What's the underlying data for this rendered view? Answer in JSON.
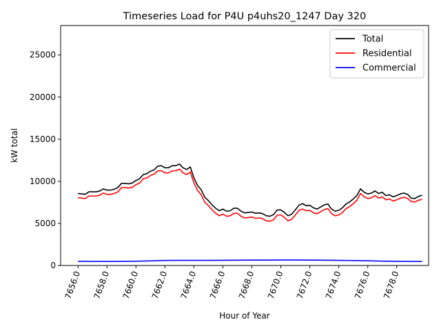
{
  "chart_data": {
    "type": "line",
    "title": "Timeseries Load for P4U p4uhs20_1247  Day 320",
    "xlabel": "Hour of Year",
    "ylabel": "kW total",
    "xlim": [
      7654.8,
      7680.2
    ],
    "ylim": [
      0,
      28500
    ],
    "x_ticks": [
      7656,
      7658,
      7660,
      7662,
      7664,
      7666,
      7668,
      7670,
      7672,
      7674,
      7676,
      7678
    ],
    "x_tick_labels": [
      "7656.0",
      "7658.0",
      "7660.0",
      "7662.0",
      "7664.0",
      "7666.0",
      "7668.0",
      "7670.0",
      "7672.0",
      "7674.0",
      "7676.0",
      "7678.0"
    ],
    "y_ticks": [
      0,
      5000,
      10000,
      15000,
      20000,
      25000
    ],
    "y_tick_labels": [
      "0",
      "5000",
      "10000",
      "15000",
      "20000",
      "25000"
    ],
    "grid": false,
    "legend_position": "top-right",
    "series": [
      {
        "name": "Total",
        "color": "#000000",
        "points": [
          [
            7656.0,
            8550
          ],
          [
            7656.25,
            8500
          ],
          [
            7656.5,
            8450
          ],
          [
            7656.75,
            8750
          ],
          [
            7657.0,
            8750
          ],
          [
            7657.25,
            8750
          ],
          [
            7657.5,
            8850
          ],
          [
            7657.75,
            9100
          ],
          [
            7658.0,
            8950
          ],
          [
            7658.25,
            8950
          ],
          [
            7658.5,
            9050
          ],
          [
            7658.75,
            9250
          ],
          [
            7659.0,
            9750
          ],
          [
            7659.25,
            9750
          ],
          [
            7659.5,
            9700
          ],
          [
            7659.75,
            9800
          ],
          [
            7660.0,
            10100
          ],
          [
            7660.25,
            10300
          ],
          [
            7660.5,
            10800
          ],
          [
            7660.75,
            10900
          ],
          [
            7661.0,
            11200
          ],
          [
            7661.25,
            11350
          ],
          [
            7661.5,
            11800
          ],
          [
            7661.75,
            11850
          ],
          [
            7662.0,
            11600
          ],
          [
            7662.25,
            11600
          ],
          [
            7662.5,
            11850
          ],
          [
            7662.75,
            11850
          ],
          [
            7663.0,
            12050
          ],
          [
            7663.25,
            11600
          ],
          [
            7663.5,
            11400
          ],
          [
            7663.75,
            11700
          ],
          [
            7664.0,
            10400
          ],
          [
            7664.25,
            9500
          ],
          [
            7664.5,
            9000
          ],
          [
            7664.75,
            8100
          ],
          [
            7665.0,
            7700
          ],
          [
            7665.25,
            7200
          ],
          [
            7665.5,
            6800
          ],
          [
            7665.75,
            6500
          ],
          [
            7666.0,
            6700
          ],
          [
            7666.25,
            6450
          ],
          [
            7666.5,
            6500
          ],
          [
            7666.75,
            6800
          ],
          [
            7667.0,
            6800
          ],
          [
            7667.25,
            6450
          ],
          [
            7667.5,
            6250
          ],
          [
            7667.75,
            6300
          ],
          [
            7668.0,
            6350
          ],
          [
            7668.25,
            6200
          ],
          [
            7668.5,
            6250
          ],
          [
            7668.75,
            6150
          ],
          [
            7669.0,
            5900
          ],
          [
            7669.25,
            5850
          ],
          [
            7669.5,
            6050
          ],
          [
            7669.75,
            6600
          ],
          [
            7670.0,
            6600
          ],
          [
            7670.25,
            6300
          ],
          [
            7670.5,
            5900
          ],
          [
            7670.75,
            6100
          ],
          [
            7671.0,
            6600
          ],
          [
            7671.25,
            7150
          ],
          [
            7671.5,
            7350
          ],
          [
            7671.75,
            7100
          ],
          [
            7672.0,
            7150
          ],
          [
            7672.25,
            6850
          ],
          [
            7672.5,
            6700
          ],
          [
            7672.75,
            6950
          ],
          [
            7673.0,
            7200
          ],
          [
            7673.25,
            7300
          ],
          [
            7673.5,
            6700
          ],
          [
            7673.75,
            6450
          ],
          [
            7674.0,
            6550
          ],
          [
            7674.25,
            6850
          ],
          [
            7674.5,
            7300
          ],
          [
            7674.75,
            7550
          ],
          [
            7675.0,
            7900
          ],
          [
            7675.25,
            8300
          ],
          [
            7675.5,
            9100
          ],
          [
            7675.75,
            8700
          ],
          [
            7676.0,
            8500
          ],
          [
            7676.25,
            8600
          ],
          [
            7676.5,
            8850
          ],
          [
            7676.75,
            8550
          ],
          [
            7677.0,
            8700
          ],
          [
            7677.25,
            8300
          ],
          [
            7677.5,
            8400
          ],
          [
            7677.75,
            8150
          ],
          [
            7678.0,
            8300
          ],
          [
            7678.25,
            8500
          ],
          [
            7678.5,
            8600
          ],
          [
            7678.75,
            8450
          ],
          [
            7679.0,
            8000
          ],
          [
            7679.25,
            7950
          ],
          [
            7679.5,
            8200
          ],
          [
            7679.75,
            8350
          ]
        ]
      },
      {
        "name": "Residential",
        "color": "#ff0000",
        "points": [
          [
            7656.0,
            8050
          ],
          [
            7656.25,
            8000
          ],
          [
            7656.5,
            7950
          ],
          [
            7656.75,
            8250
          ],
          [
            7657.0,
            8250
          ],
          [
            7657.25,
            8250
          ],
          [
            7657.5,
            8350
          ],
          [
            7657.75,
            8600
          ],
          [
            7658.0,
            8450
          ],
          [
            7658.25,
            8450
          ],
          [
            7658.5,
            8550
          ],
          [
            7658.75,
            8750
          ],
          [
            7659.0,
            9250
          ],
          [
            7659.25,
            9250
          ],
          [
            7659.5,
            9200
          ],
          [
            7659.75,
            9300
          ],
          [
            7660.0,
            9600
          ],
          [
            7660.25,
            9800
          ],
          [
            7660.5,
            10300
          ],
          [
            7660.75,
            10400
          ],
          [
            7661.0,
            10700
          ],
          [
            7661.25,
            10850
          ],
          [
            7661.5,
            11250
          ],
          [
            7661.75,
            11250
          ],
          [
            7662.0,
            11000
          ],
          [
            7662.25,
            11000
          ],
          [
            7662.5,
            11250
          ],
          [
            7662.75,
            11250
          ],
          [
            7663.0,
            11450
          ],
          [
            7663.25,
            11000
          ],
          [
            7663.5,
            10800
          ],
          [
            7663.75,
            11100
          ],
          [
            7664.0,
            9800
          ],
          [
            7664.25,
            8900
          ],
          [
            7664.5,
            8400
          ],
          [
            7664.75,
            7500
          ],
          [
            7665.0,
            7100
          ],
          [
            7665.25,
            6600
          ],
          [
            7665.5,
            6200
          ],
          [
            7665.75,
            5900
          ],
          [
            7666.0,
            6100
          ],
          [
            7666.25,
            5850
          ],
          [
            7666.5,
            5900
          ],
          [
            7666.75,
            6200
          ],
          [
            7667.0,
            6200
          ],
          [
            7667.25,
            5850
          ],
          [
            7667.5,
            5650
          ],
          [
            7667.75,
            5700
          ],
          [
            7668.0,
            5750
          ],
          [
            7668.25,
            5600
          ],
          [
            7668.5,
            5650
          ],
          [
            7668.75,
            5550
          ],
          [
            7669.0,
            5300
          ],
          [
            7669.25,
            5250
          ],
          [
            7669.5,
            5450
          ],
          [
            7669.75,
            6000
          ],
          [
            7670.0,
            6000
          ],
          [
            7670.25,
            5700
          ],
          [
            7670.5,
            5300
          ],
          [
            7670.75,
            5500
          ],
          [
            7671.0,
            6000
          ],
          [
            7671.25,
            6550
          ],
          [
            7671.5,
            6700
          ],
          [
            7671.75,
            6500
          ],
          [
            7672.0,
            6550
          ],
          [
            7672.25,
            6250
          ],
          [
            7672.5,
            6150
          ],
          [
            7672.75,
            6400
          ],
          [
            7673.0,
            6650
          ],
          [
            7673.25,
            6750
          ],
          [
            7673.5,
            6150
          ],
          [
            7673.75,
            5900
          ],
          [
            7674.0,
            6000
          ],
          [
            7674.25,
            6300
          ],
          [
            7674.5,
            6750
          ],
          [
            7674.75,
            7000
          ],
          [
            7675.0,
            7350
          ],
          [
            7675.25,
            7750
          ],
          [
            7675.5,
            8550
          ],
          [
            7675.75,
            8150
          ],
          [
            7676.0,
            7950
          ],
          [
            7676.25,
            8050
          ],
          [
            7676.5,
            8300
          ],
          [
            7676.75,
            8000
          ],
          [
            7677.0,
            8150
          ],
          [
            7677.25,
            7800
          ],
          [
            7677.5,
            7900
          ],
          [
            7677.75,
            7650
          ],
          [
            7678.0,
            7800
          ],
          [
            7678.25,
            8000
          ],
          [
            7678.5,
            8100
          ],
          [
            7678.75,
            7950
          ],
          [
            7679.0,
            7600
          ],
          [
            7679.25,
            7550
          ],
          [
            7679.5,
            7750
          ],
          [
            7679.75,
            7850
          ]
        ]
      },
      {
        "name": "Commercial",
        "color": "#0000ff",
        "points": [
          [
            7656.0,
            500
          ],
          [
            7657.0,
            490
          ],
          [
            7658.0,
            480
          ],
          [
            7659.0,
            490
          ],
          [
            7660.0,
            510
          ],
          [
            7661.0,
            550
          ],
          [
            7662.0,
            600
          ],
          [
            7663.0,
            610
          ],
          [
            7664.0,
            610
          ],
          [
            7665.0,
            610
          ],
          [
            7666.0,
            620
          ],
          [
            7667.0,
            630
          ],
          [
            7668.0,
            640
          ],
          [
            7669.0,
            640
          ],
          [
            7670.0,
            650
          ],
          [
            7671.0,
            650
          ],
          [
            7672.0,
            640
          ],
          [
            7673.0,
            630
          ],
          [
            7674.0,
            610
          ],
          [
            7675.0,
            590
          ],
          [
            7676.0,
            560
          ],
          [
            7677.0,
            520
          ],
          [
            7678.0,
            500
          ],
          [
            7679.0,
            490
          ],
          [
            7679.75,
            480
          ]
        ]
      }
    ]
  }
}
